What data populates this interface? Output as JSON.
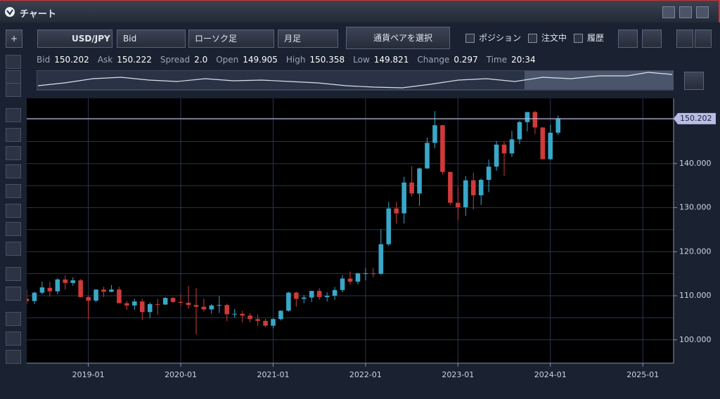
{
  "window": {
    "title": "チャート"
  },
  "toolbar": {
    "pair": "USD/JPY",
    "price_side": "Bid",
    "chart_style": "ローソク足",
    "period": "月足",
    "select_pair": "通貨ペアを選択",
    "checks": [
      "ポジション",
      "注文中",
      "履歴"
    ]
  },
  "quote": [
    {
      "label": "Bid",
      "value": "150.202"
    },
    {
      "label": "Ask",
      "value": "150.222"
    },
    {
      "label": "Spread",
      "value": "2.0"
    },
    {
      "label": "Open",
      "value": "149.905"
    },
    {
      "label": "High",
      "value": "150.358"
    },
    {
      "label": "Low",
      "value": "149.821"
    },
    {
      "label": "Change",
      "value": "0.297"
    },
    {
      "label": "Time",
      "value": "20:34"
    }
  ],
  "chart_data": {
    "type": "candlestick",
    "x": [
      "2018-05",
      "2018-06",
      "2018-07",
      "2018-08",
      "2018-09",
      "2018-10",
      "2018-11",
      "2018-12",
      "2019-01",
      "2019-02",
      "2019-03",
      "2019-04",
      "2019-05",
      "2019-06",
      "2019-07",
      "2019-08",
      "2019-09",
      "2019-10",
      "2019-11",
      "2019-12",
      "2020-01",
      "2020-02",
      "2020-03",
      "2020-04",
      "2020-05",
      "2020-06",
      "2020-07",
      "2020-08",
      "2020-09",
      "2020-10",
      "2020-11",
      "2020-12",
      "2021-01",
      "2021-02",
      "2021-03",
      "2021-04",
      "2021-05",
      "2021-06",
      "2021-07",
      "2021-08",
      "2021-09",
      "2021-10",
      "2021-11",
      "2021-12",
      "2022-01",
      "2022-02",
      "2022-03",
      "2022-04",
      "2022-05",
      "2022-06",
      "2022-07",
      "2022-08",
      "2022-09",
      "2022-10",
      "2022-11",
      "2022-12",
      "2023-01",
      "2023-02",
      "2023-03",
      "2023-04",
      "2023-05",
      "2023-06",
      "2023-07",
      "2023-08",
      "2023-09",
      "2023-10",
      "2023-11",
      "2023-12",
      "2024-01",
      "2024-02"
    ],
    "open": [
      109.3,
      108.8,
      110.7,
      111.8,
      111.0,
      113.7,
      112.9,
      113.5,
      109.7,
      108.9,
      111.4,
      110.9,
      111.4,
      108.3,
      107.8,
      108.7,
      106.3,
      108.1,
      108.0,
      109.5,
      108.6,
      108.4,
      107.9,
      107.5,
      106.9,
      107.8,
      107.9,
      105.8,
      105.9,
      105.5,
      104.7,
      104.3,
      103.2,
      104.7,
      106.6,
      110.7,
      109.3,
      109.6,
      111.1,
      109.7,
      110.0,
      111.3,
      113.9,
      113.2,
      115.1,
      115.1,
      115.0,
      121.7,
      129.8,
      128.7,
      135.7,
      133.2,
      138.9,
      144.7,
      148.7,
      138.1,
      131.1,
      130.1,
      136.2,
      132.8,
      136.3,
      139.3,
      144.3,
      142.3,
      145.5,
      149.4,
      151.7,
      148.2,
      141.0,
      147.0
    ],
    "high": [
      111.4,
      110.9,
      113.2,
      113.2,
      114.0,
      114.6,
      114.2,
      113.8,
      110.0,
      111.5,
      112.1,
      112.4,
      112.0,
      108.8,
      109.3,
      109.3,
      108.5,
      109.3,
      109.7,
      109.7,
      110.3,
      112.2,
      111.7,
      109.4,
      108.1,
      109.9,
      108.2,
      107.0,
      106.6,
      106.1,
      105.7,
      104.8,
      104.9,
      106.7,
      110.9,
      110.9,
      110.2,
      111.1,
      111.7,
      110.8,
      112.0,
      114.7,
      115.5,
      115.2,
      116.3,
      116.3,
      125.1,
      131.3,
      131.3,
      137.0,
      139.4,
      139.1,
      145.9,
      151.9,
      148.8,
      138.2,
      134.8,
      137.1,
      137.9,
      136.6,
      140.9,
      145.1,
      145.0,
      147.4,
      149.7,
      151.7,
      151.9,
      148.2,
      148.8,
      150.9
    ],
    "low": [
      108.1,
      108.1,
      110.3,
      109.8,
      110.4,
      111.4,
      112.3,
      109.6,
      104.7,
      108.5,
      109.7,
      110.8,
      108.3,
      106.8,
      106.8,
      104.5,
      104.9,
      105.7,
      107.9,
      108.4,
      107.6,
      107.0,
      101.2,
      106.4,
      105.9,
      106.1,
      104.2,
      105.1,
      104.0,
      104.0,
      103.2,
      102.9,
      102.6,
      104.4,
      106.4,
      107.5,
      108.3,
      108.6,
      109.1,
      108.7,
      109.1,
      110.8,
      112.5,
      112.6,
      113.5,
      114.2,
      114.7,
      121.3,
      126.4,
      126.4,
      132.5,
      130.4,
      138.8,
      143.5,
      137.5,
      130.6,
      127.2,
      128.1,
      129.6,
      130.6,
      133.5,
      138.4,
      137.2,
      141.5,
      144.4,
      147.3,
      146.7,
      140.9,
      140.8,
      146.5
    ],
    "close": [
      108.8,
      110.7,
      111.9,
      111.0,
      113.7,
      112.9,
      113.5,
      109.7,
      108.9,
      111.4,
      110.9,
      111.4,
      108.3,
      107.8,
      108.7,
      106.3,
      108.1,
      108.0,
      109.5,
      108.6,
      108.4,
      107.9,
      107.5,
      106.9,
      107.8,
      107.9,
      105.8,
      105.9,
      105.5,
      104.7,
      104.3,
      103.2,
      104.7,
      106.6,
      110.7,
      109.3,
      109.6,
      111.1,
      109.7,
      110.0,
      111.3,
      113.9,
      113.2,
      115.1,
      115.1,
      115.0,
      121.7,
      129.8,
      128.7,
      135.7,
      133.2,
      138.9,
      144.7,
      148.7,
      138.1,
      131.1,
      130.1,
      136.2,
      132.8,
      136.3,
      139.3,
      144.3,
      142.3,
      145.5,
      149.4,
      151.7,
      148.2,
      141.0,
      147.0,
      150.2
    ],
    "up_color": "#3aa7c8",
    "down_color": "#cf3a3a",
    "xlim": [
      "2018-05",
      "2025-05"
    ],
    "xticks": [
      "2019-01",
      "2020-01",
      "2021-01",
      "2022-01",
      "2023-01",
      "2024-01",
      "2025-01"
    ],
    "ylim": [
      94.7,
      154.8
    ],
    "yticks": [
      {
        "value": 100,
        "label": "100.000"
      },
      {
        "value": 110,
        "label": "110.000"
      },
      {
        "value": 120,
        "label": "120.000"
      },
      {
        "value": 130,
        "label": "130.000"
      },
      {
        "value": 140,
        "label": "140.000"
      }
    ],
    "minor_yticks": [
      105,
      115,
      125,
      135,
      145,
      150
    ],
    "current_price": {
      "value": 150.202,
      "label": "150.202"
    },
    "grid": true
  }
}
